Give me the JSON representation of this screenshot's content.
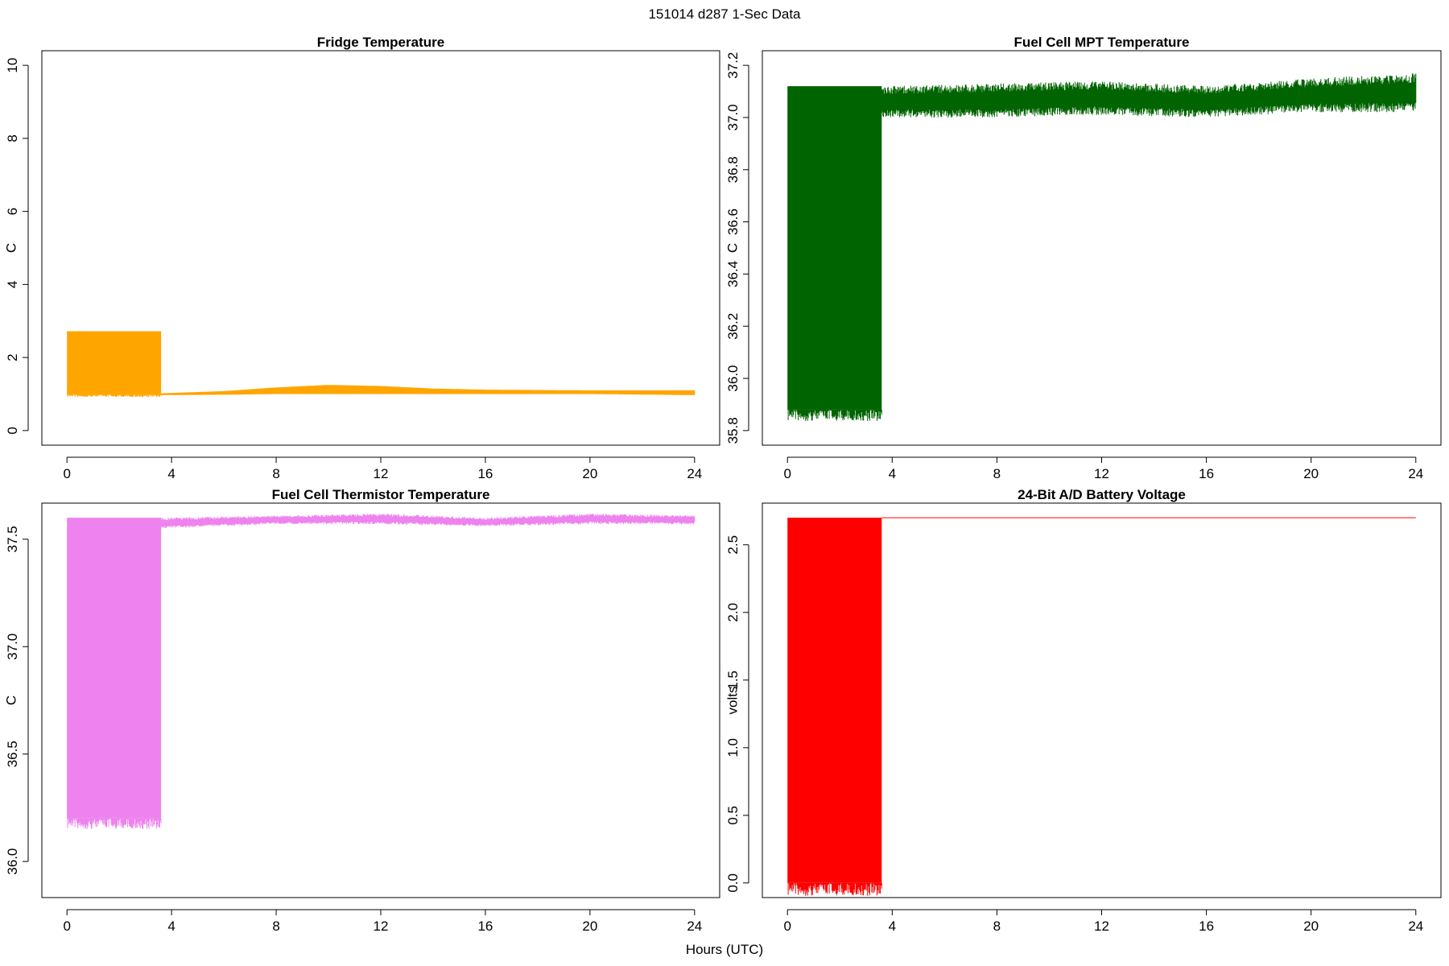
{
  "figure": {
    "title": "151014   d287   1-Sec Data",
    "xlabel": "Hours (UTC)"
  },
  "chart_data": [
    {
      "type": "line",
      "title": "Fridge Temperature",
      "ylabel": "C",
      "color": "#FFA500",
      "xlim": [
        0,
        24
      ],
      "ylim": [
        0,
        10
      ],
      "xticks": [
        0,
        4,
        8,
        12,
        16,
        20,
        24
      ],
      "yticks": [
        0,
        2,
        4,
        6,
        8,
        10
      ],
      "segments": [
        {
          "x_start": 0,
          "x_end": 3.6,
          "band_low": 0.98,
          "band_high": 2.72,
          "style": "solid"
        },
        {
          "x_start": 3.6,
          "x_end": 24,
          "x": [
            3.6,
            6,
            8,
            10,
            12,
            14,
            16,
            20,
            24
          ],
          "low": [
            0.97,
            0.98,
            1.0,
            1.0,
            1.0,
            1.0,
            1.0,
            1.0,
            0.97
          ],
          "high": [
            1.02,
            1.08,
            1.18,
            1.25,
            1.22,
            1.15,
            1.12,
            1.1,
            1.1
          ],
          "style": "oscillation"
        }
      ]
    },
    {
      "type": "line",
      "title": "Fuel Cell MPT Temperature",
      "ylabel": "C",
      "color": "#006400",
      "xlim": [
        0,
        24
      ],
      "ylim": [
        35.8,
        37.2
      ],
      "xticks": [
        0,
        4,
        8,
        12,
        16,
        20,
        24
      ],
      "yticks": [
        35.8,
        36.0,
        36.2,
        36.4,
        36.6,
        36.8,
        37.0,
        37.2
      ],
      "segments": [
        {
          "x_start": 0,
          "x_end": 3.6,
          "band_low": 35.88,
          "band_high": 37.12,
          "style": "solid"
        },
        {
          "x_start": 3.6,
          "x_end": 24,
          "x": [
            3.6,
            8,
            12,
            16,
            20,
            24
          ],
          "low": [
            37.0,
            37.0,
            37.01,
            37.0,
            37.02,
            37.02
          ],
          "high": [
            37.12,
            37.13,
            37.14,
            37.12,
            37.15,
            37.17
          ],
          "style": "noise"
        }
      ]
    },
    {
      "type": "line",
      "title": "Fuel Cell Thermistor Temperature",
      "ylabel": "C",
      "color": "#EE82EE",
      "xlim": [
        0,
        24
      ],
      "ylim": [
        35.9,
        37.6
      ],
      "xticks": [
        0,
        4,
        8,
        12,
        16,
        20,
        24
      ],
      "yticks": [
        36.0,
        36.5,
        37.0,
        37.5
      ],
      "segments": [
        {
          "x_start": 0,
          "x_end": 3.6,
          "band_low": 36.2,
          "band_high": 37.6,
          "style": "solid"
        },
        {
          "x_start": 3.6,
          "x_end": 24,
          "x": [
            3.6,
            8,
            12,
            16,
            20,
            24
          ],
          "low": [
            37.55,
            37.57,
            37.57,
            37.56,
            37.57,
            37.57
          ],
          "high": [
            37.6,
            37.61,
            37.62,
            37.6,
            37.62,
            37.61
          ],
          "style": "noise"
        }
      ]
    },
    {
      "type": "line",
      "title": "24-Bit A/D Battery Voltage",
      "ylabel": "volts",
      "color": "#FF0000",
      "xlim": [
        0,
        24
      ],
      "ylim": [
        0,
        2.7
      ],
      "xticks": [
        0,
        4,
        8,
        12,
        16,
        20,
        24
      ],
      "yticks": [
        0.0,
        0.5,
        1.0,
        1.5,
        2.0,
        2.5
      ],
      "segments": [
        {
          "x_start": 0,
          "x_end": 3.6,
          "band_low": 0,
          "band_high": 2.7,
          "style": "solid"
        },
        {
          "x_start": 3.6,
          "x_end": 24,
          "x": [
            3.6,
            24
          ],
          "low": [
            2.7,
            2.7
          ],
          "high": [
            2.7,
            2.7
          ],
          "style": "flat"
        }
      ]
    }
  ]
}
